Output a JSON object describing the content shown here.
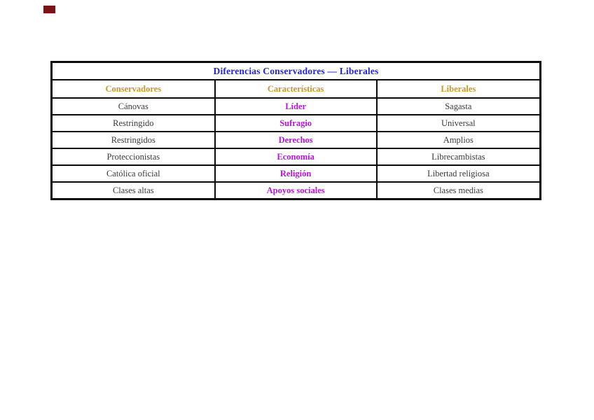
{
  "colors": {
    "red_marker": "#7b1416",
    "border_color": "#0b0b0b",
    "title_color": "#2424d8",
    "header_color": "#c8982a",
    "category_color": "#b815dc",
    "side_color": "#3a3a3a"
  },
  "table": {
    "title": "Diferencias Conservadores — Liberales",
    "headers": [
      "Conservadores",
      "Características",
      "Liberales"
    ],
    "rows": [
      [
        "Cánovas",
        "Líder",
        "Sagasta"
      ],
      [
        "Restringido",
        "Sufragio",
        "Universal"
      ],
      [
        "Restringidos",
        "Derechos",
        "Amplios"
      ],
      [
        "Proteccionistas",
        "Economía",
        "Librecambistas"
      ],
      [
        "Católica oficial",
        "Religión",
        "Libertad religiosa"
      ],
      [
        "Clases altas",
        "Apoyos sociales",
        "Clases medias"
      ]
    ]
  }
}
